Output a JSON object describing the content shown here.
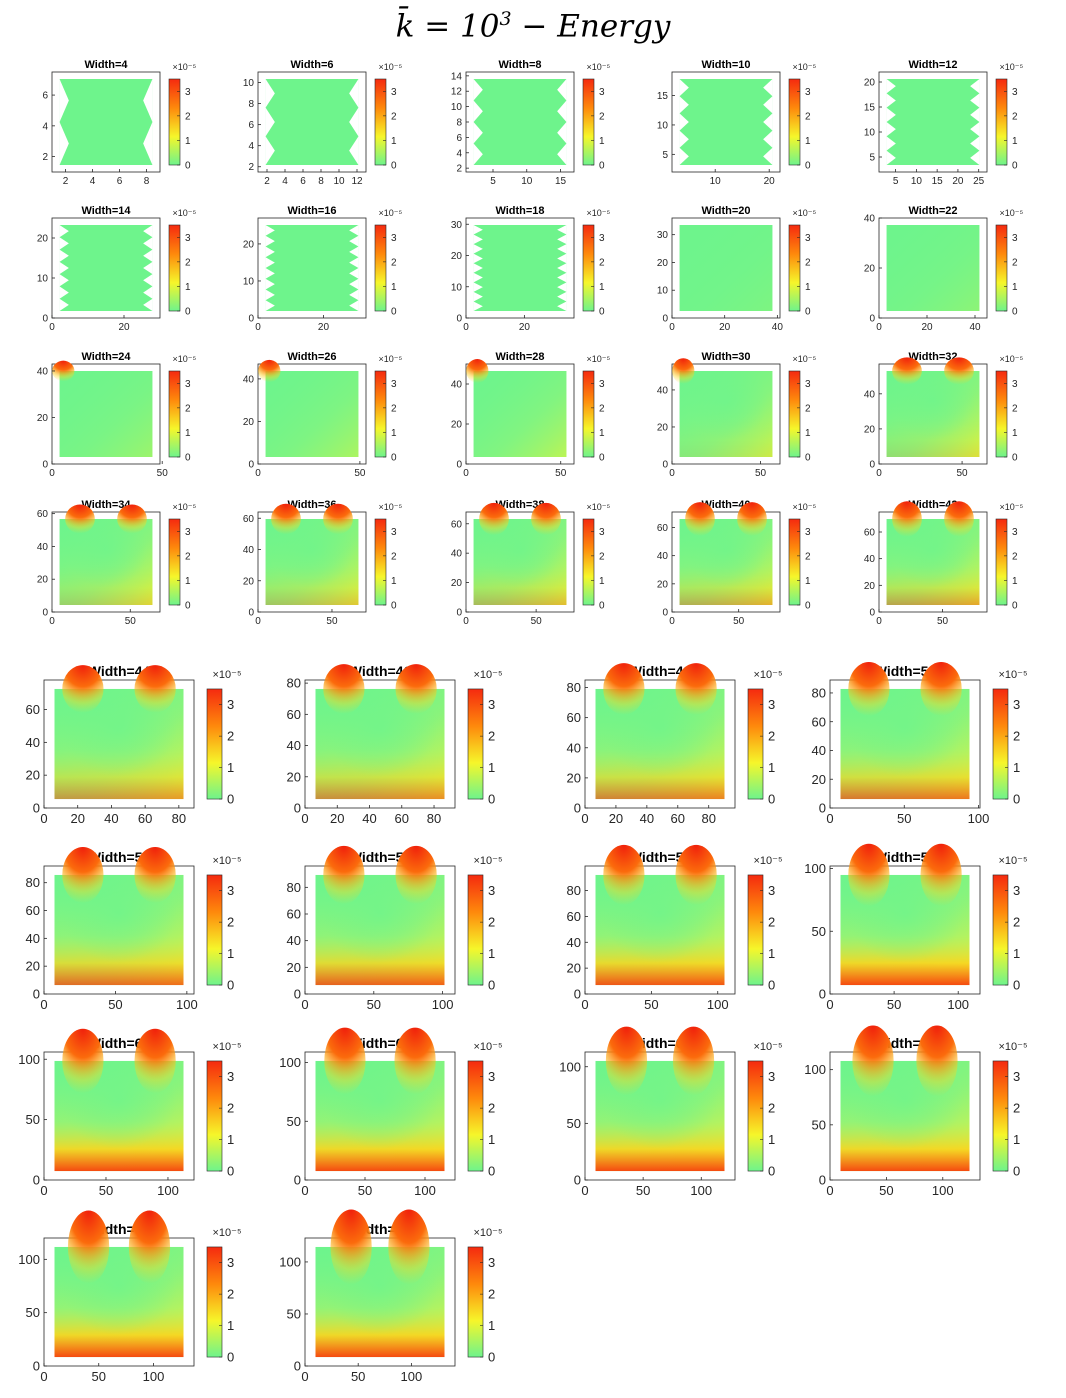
{
  "figure": {
    "title_text": "k̄ = 10",
    "title_exp": "3",
    "title_suffix": " − Energy"
  },
  "colorbar": {
    "ticks": [
      "0",
      "1",
      "2",
      "3"
    ],
    "exponent_label": "×10⁻⁵",
    "colors": [
      "#6ef48c",
      "#f6f62a",
      "#fe8a0c",
      "#f52a0f"
    ],
    "range": [
      0,
      3.5
    ]
  },
  "chart_data": [
    {
      "type": "heatmap",
      "title": "Width=4",
      "xticks": [
        "2",
        "4",
        "6",
        "8"
      ],
      "yticks": [
        "2",
        "4",
        "6"
      ],
      "xlim": [
        1,
        9
      ],
      "ylim": [
        1,
        7.5
      ]
    },
    {
      "type": "heatmap",
      "title": "Width=6",
      "xticks": [
        "2",
        "4",
        "6",
        "8",
        "10",
        "12"
      ],
      "yticks": [
        "2",
        "4",
        "6",
        "8",
        "10"
      ],
      "xlim": [
        1,
        13
      ],
      "ylim": [
        1.5,
        11
      ]
    },
    {
      "type": "heatmap",
      "title": "Width=8",
      "xticks": [
        "5",
        "10",
        "15"
      ],
      "yticks": [
        "2",
        "4",
        "6",
        "8",
        "10",
        "12",
        "14"
      ],
      "xlim": [
        1,
        17
      ],
      "ylim": [
        1.5,
        14.5
      ]
    },
    {
      "type": "heatmap",
      "title": "Width=10",
      "xticks": [
        "10",
        "20"
      ],
      "yticks": [
        "5",
        "10",
        "15"
      ],
      "xlim": [
        2,
        22
      ],
      "ylim": [
        2,
        19
      ]
    },
    {
      "type": "heatmap",
      "title": "Width=12",
      "xticks": [
        "5",
        "10",
        "15",
        "20",
        "25"
      ],
      "yticks": [
        "5",
        "10",
        "15",
        "20"
      ],
      "xlim": [
        1,
        27
      ],
      "ylim": [
        2,
        22
      ]
    },
    {
      "type": "heatmap",
      "title": "Width=14",
      "xticks": [
        "0",
        "20"
      ],
      "yticks": [
        "0",
        "10",
        "20"
      ],
      "xlim": [
        0,
        30
      ],
      "ylim": [
        0,
        25
      ]
    },
    {
      "type": "heatmap",
      "title": "Width=16",
      "xticks": [
        "0",
        "20"
      ],
      "yticks": [
        "0",
        "10",
        "20"
      ],
      "xlim": [
        0,
        33
      ],
      "ylim": [
        0,
        27
      ]
    },
    {
      "type": "heatmap",
      "title": "Width=18",
      "xticks": [
        "0",
        "20"
      ],
      "yticks": [
        "0",
        "10",
        "20",
        "30"
      ],
      "xlim": [
        0,
        37
      ],
      "ylim": [
        0,
        32
      ]
    },
    {
      "type": "heatmap",
      "title": "Width=20",
      "xticks": [
        "0",
        "20",
        "40"
      ],
      "yticks": [
        "0",
        "10",
        "20",
        "30"
      ],
      "xlim": [
        0,
        41
      ],
      "ylim": [
        0,
        36
      ]
    },
    {
      "type": "heatmap",
      "title": "Width=22",
      "xticks": [
        "0",
        "20",
        "40"
      ],
      "yticks": [
        "0",
        "20",
        "40"
      ],
      "xlim": [
        0,
        45
      ],
      "ylim": [
        0,
        40
      ]
    },
    {
      "type": "heatmap",
      "title": "Width=24",
      "xticks": [
        "0",
        "50"
      ],
      "yticks": [
        "0",
        "20",
        "40"
      ],
      "xlim": [
        0,
        49
      ],
      "ylim": [
        0,
        43
      ]
    },
    {
      "type": "heatmap",
      "title": "Width=26",
      "xticks": [
        "0",
        "50"
      ],
      "yticks": [
        "0",
        "20",
        "40"
      ],
      "xlim": [
        0,
        53
      ],
      "ylim": [
        0,
        47
      ]
    },
    {
      "type": "heatmap",
      "title": "Width=28",
      "xticks": [
        "0",
        "50"
      ],
      "yticks": [
        "0",
        "20",
        "40"
      ],
      "xlim": [
        0,
        57
      ],
      "ylim": [
        0,
        50
      ]
    },
    {
      "type": "heatmap",
      "title": "Width=30",
      "xticks": [
        "0",
        "50"
      ],
      "yticks": [
        "0",
        "20",
        "40"
      ],
      "xlim": [
        0,
        61
      ],
      "ylim": [
        0,
        54
      ]
    },
    {
      "type": "heatmap",
      "title": "Width=32",
      "xticks": [
        "0",
        "50"
      ],
      "yticks": [
        "0",
        "20",
        "40"
      ],
      "xlim": [
        0,
        65
      ],
      "ylim": [
        0,
        57
      ]
    },
    {
      "type": "heatmap",
      "title": "Width=34",
      "xticks": [
        "0",
        "50"
      ],
      "yticks": [
        "0",
        "20",
        "40",
        "60"
      ],
      "xlim": [
        0,
        69
      ],
      "ylim": [
        0,
        61
      ]
    },
    {
      "type": "heatmap",
      "title": "Width=36",
      "xticks": [
        "0",
        "50"
      ],
      "yticks": [
        "0",
        "20",
        "40",
        "60"
      ],
      "xlim": [
        0,
        73
      ],
      "ylim": [
        0,
        64
      ]
    },
    {
      "type": "heatmap",
      "title": "Width=38",
      "xticks": [
        "0",
        "50"
      ],
      "yticks": [
        "0",
        "20",
        "40",
        "60"
      ],
      "xlim": [
        0,
        77
      ],
      "ylim": [
        0,
        68
      ]
    },
    {
      "type": "heatmap",
      "title": "Width=40",
      "xticks": [
        "0",
        "50"
      ],
      "yticks": [
        "0",
        "20",
        "40",
        "60"
      ],
      "xlim": [
        0,
        81
      ],
      "ylim": [
        0,
        71
      ]
    },
    {
      "type": "heatmap",
      "title": "Width=42",
      "xticks": [
        "0",
        "50"
      ],
      "yticks": [
        "0",
        "20",
        "40",
        "60"
      ],
      "xlim": [
        0,
        85
      ],
      "ylim": [
        0,
        75
      ]
    },
    {
      "type": "heatmap",
      "title": "Width=44",
      "xticks": [
        "0",
        "20",
        "40",
        "60",
        "80"
      ],
      "yticks": [
        "0",
        "20",
        "40",
        "60"
      ],
      "xlim": [
        0,
        89
      ],
      "ylim": [
        0,
        78
      ]
    },
    {
      "type": "heatmap",
      "title": "Width=46",
      "xticks": [
        "0",
        "20",
        "40",
        "60",
        "80"
      ],
      "yticks": [
        "0",
        "20",
        "40",
        "60",
        "80"
      ],
      "xlim": [
        0,
        93
      ],
      "ylim": [
        0,
        82
      ]
    },
    {
      "type": "heatmap",
      "title": "Width=48",
      "xticks": [
        "0",
        "20",
        "40",
        "60",
        "80"
      ],
      "yticks": [
        "0",
        "20",
        "40",
        "60",
        "80"
      ],
      "xlim": [
        0,
        97
      ],
      "ylim": [
        0,
        85
      ]
    },
    {
      "type": "heatmap",
      "title": "Width=50",
      "xticks": [
        "0",
        "50",
        "100"
      ],
      "yticks": [
        "0",
        "20",
        "40",
        "60",
        "80"
      ],
      "xlim": [
        0,
        101
      ],
      "ylim": [
        0,
        89
      ]
    },
    {
      "type": "heatmap",
      "title": "Width=52",
      "xticks": [
        "0",
        "50",
        "100"
      ],
      "yticks": [
        "0",
        "20",
        "40",
        "60",
        "80"
      ],
      "xlim": [
        0,
        105
      ],
      "ylim": [
        0,
        92
      ]
    },
    {
      "type": "heatmap",
      "title": "Width=54",
      "xticks": [
        "0",
        "50",
        "100"
      ],
      "yticks": [
        "0",
        "20",
        "40",
        "60",
        "80"
      ],
      "xlim": [
        0,
        109
      ],
      "ylim": [
        0,
        96
      ]
    },
    {
      "type": "heatmap",
      "title": "Width=56",
      "xticks": [
        "0",
        "50",
        "100"
      ],
      "yticks": [
        "0",
        "20",
        "40",
        "60",
        "80"
      ],
      "xlim": [
        0,
        113
      ],
      "ylim": [
        0,
        99
      ]
    },
    {
      "type": "heatmap",
      "title": "Width=58",
      "xticks": [
        "0",
        "50",
        "100"
      ],
      "yticks": [
        "0",
        "50",
        "100"
      ],
      "xlim": [
        0,
        117
      ],
      "ylim": [
        0,
        102
      ]
    },
    {
      "type": "heatmap",
      "title": "Width=60",
      "xticks": [
        "0",
        "50",
        "100"
      ],
      "yticks": [
        "0",
        "50",
        "100"
      ],
      "xlim": [
        0,
        121
      ],
      "ylim": [
        0,
        106
      ]
    },
    {
      "type": "heatmap",
      "title": "Width=62",
      "xticks": [
        "0",
        "50",
        "100"
      ],
      "yticks": [
        "0",
        "50",
        "100"
      ],
      "xlim": [
        0,
        125
      ],
      "ylim": [
        0,
        109
      ]
    },
    {
      "type": "heatmap",
      "title": "Width=64",
      "xticks": [
        "0",
        "50",
        "100"
      ],
      "yticks": [
        "0",
        "50",
        "100"
      ],
      "xlim": [
        0,
        129
      ],
      "ylim": [
        0,
        113
      ]
    },
    {
      "type": "heatmap",
      "title": "Width=66",
      "xticks": [
        "0",
        "50",
        "100"
      ],
      "yticks": [
        "0",
        "50",
        "100"
      ],
      "xlim": [
        0,
        133
      ],
      "ylim": [
        0,
        116
      ]
    },
    {
      "type": "heatmap",
      "title": "Width=68",
      "xticks": [
        "0",
        "50",
        "100"
      ],
      "yticks": [
        "0",
        "50",
        "100"
      ],
      "xlim": [
        0,
        137
      ],
      "ylim": [
        0,
        120
      ]
    },
    {
      "type": "heatmap",
      "title": "Width=70",
      "xticks": [
        "0",
        "50",
        "100"
      ],
      "yticks": [
        "0",
        "50",
        "100"
      ],
      "xlim": [
        0,
        141
      ],
      "ylim": [
        0,
        123
      ]
    }
  ]
}
